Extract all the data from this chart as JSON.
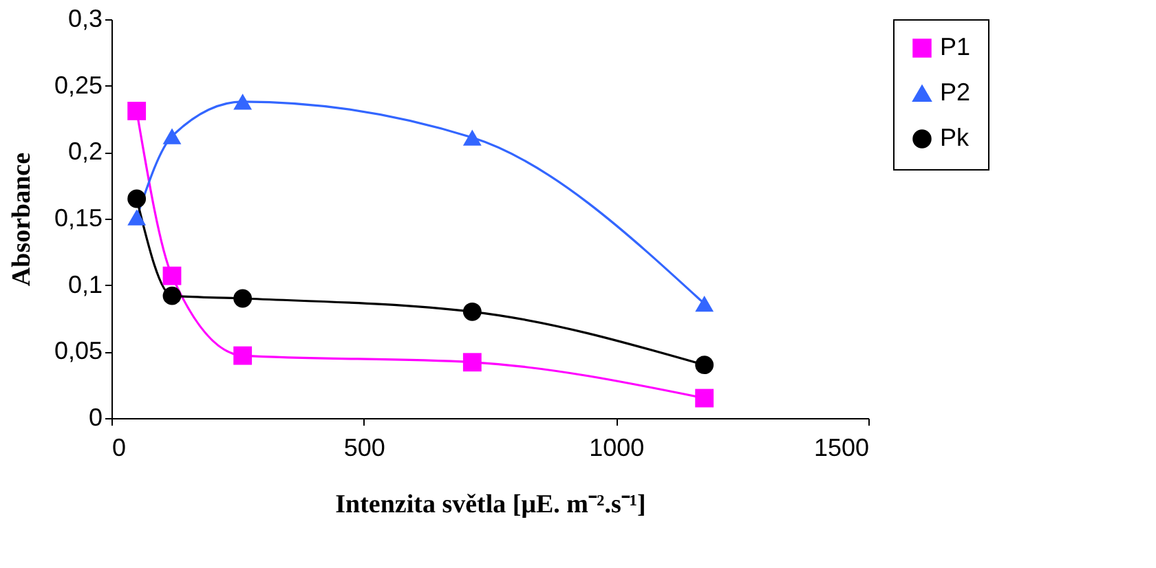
{
  "chart_data": {
    "type": "line",
    "xlabel": "Intenzita světla [μE. m⁻².s⁻¹]",
    "ylabel": "Absorbance",
    "x": [
      50,
      120,
      260,
      715,
      1175
    ],
    "series": [
      {
        "name": "P1",
        "color": "#ff00ff",
        "marker": "square",
        "values": [
          0.231,
          0.107,
          0.047,
          0.042,
          0.015
        ]
      },
      {
        "name": "P2",
        "color": "#3366ff",
        "marker": "triangle",
        "values": [
          0.151,
          0.212,
          0.238,
          0.211,
          0.086
        ]
      },
      {
        "name": "Pk",
        "color": "#000000",
        "marker": "circle",
        "values": [
          0.165,
          0.092,
          0.09,
          0.08,
          0.04
        ]
      }
    ],
    "xlim": [
      0,
      1500
    ],
    "xticks": [
      0,
      500,
      1000,
      1500
    ],
    "ylim": [
      0,
      0.3
    ],
    "yticks": [
      0,
      {
        "value": 0.05,
        "label": "0,05"
      },
      {
        "value": 0.1,
        "label": "0,1"
      },
      {
        "value": 0.15,
        "label": "0,15"
      },
      {
        "value": 0.2,
        "label": "0,2"
      },
      {
        "value": 0.25,
        "label": "0,25"
      },
      {
        "value": 0.3,
        "label": "0,3"
      }
    ],
    "grid": false,
    "legend": "right",
    "line_style": "solid"
  }
}
